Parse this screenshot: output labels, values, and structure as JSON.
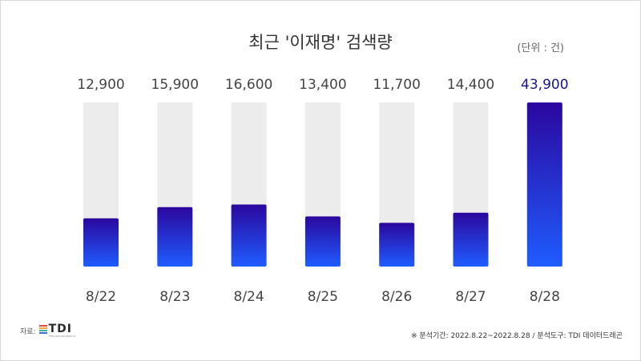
{
  "source": {
    "label": "자료:",
    "logo_text": "TDI",
    "logo_subtext": "THE DATA INCUBATOR",
    "logo_stripe_colors": [
      "#e94b3c",
      "#f2a33a",
      "#3bb3a8",
      "#3a6fd8"
    ]
  },
  "footnote": "※ 분석기간: 2022.8.22~2022.8.28  / 분석도구: TDI 데이터드래곤",
  "colors": {
    "bar_top": "#2b079e",
    "bar_bottom": "#1f5cff",
    "track": "#ececec",
    "label": "#444444",
    "highlight_label": "#1a1583"
  },
  "chart_data": {
    "type": "bar",
    "title": "최근 '이재명' 검색량",
    "unit": "(단위 : 건)",
    "categories": [
      "8/22",
      "8/23",
      "8/24",
      "8/25",
      "8/26",
      "8/27",
      "8/28"
    ],
    "values": [
      12900,
      15900,
      16600,
      13400,
      11700,
      14400,
      43900
    ],
    "value_labels": [
      "12,900",
      "15,900",
      "16,600",
      "13,400",
      "11,700",
      "14,400",
      "43,900"
    ],
    "highlight_index": 6,
    "grid": false,
    "legend": "none"
  }
}
